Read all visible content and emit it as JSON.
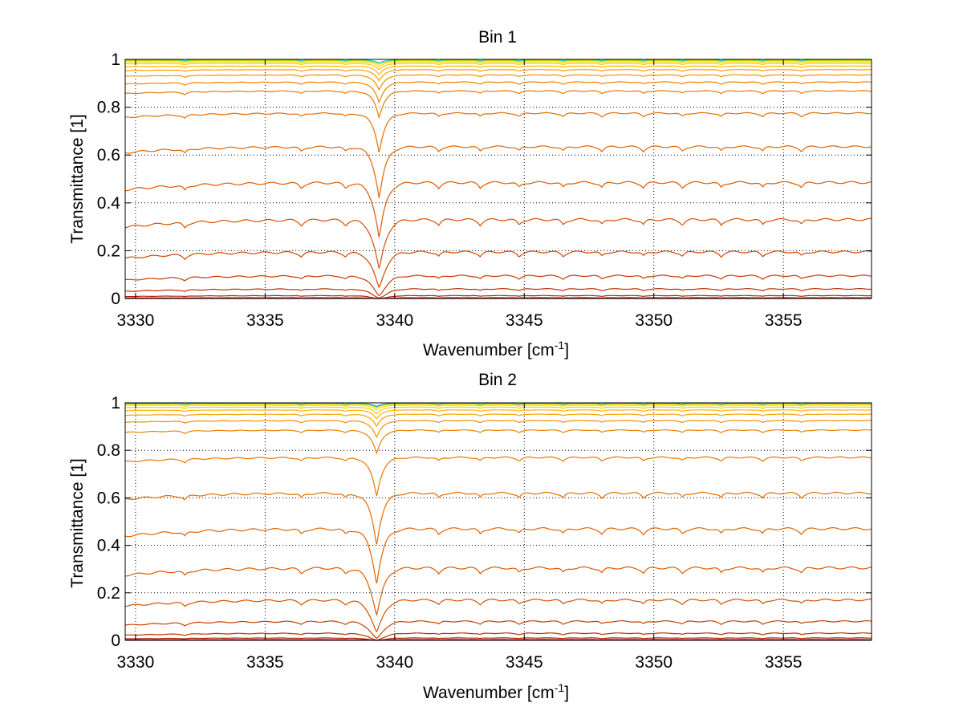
{
  "figure": {
    "background": "#ffffff"
  },
  "chart_data": [
    {
      "type": "line",
      "title": "Bin 1",
      "xlabel": "Wavenumber [cm",
      "xlabel_sup": "-1",
      "xlabel_close": "]",
      "ylabel": "Transmittance [1]",
      "xlim": [
        3329.6,
        3358.4
      ],
      "ylim": [
        0,
        1
      ],
      "xticks": [
        3330,
        3335,
        3340,
        3345,
        3350,
        3355
      ],
      "xtick_labels": [
        "3330",
        "3335",
        "3340",
        "3345",
        "3350",
        "3355"
      ],
      "yticks": [
        0,
        0.2,
        0.4,
        0.6,
        0.8,
        1
      ],
      "ytick_labels": [
        "0",
        "0.2",
        "0.4",
        "0.6",
        "0.8",
        "1"
      ],
      "grid": "dotted",
      "description_of_series": "family of transmittance spectra, darker red = more absorption",
      "main_absorption_line": 3339.4,
      "weak_absorption_lines": [
        3331.9,
        3336.4,
        3338.1,
        3341.7,
        3343.3,
        3344.8,
        3346.5,
        3348.0,
        3349.6,
        3351.1,
        3352.6,
        3354.2,
        3355.7
      ],
      "series": [
        {
          "name": "s1",
          "baseline": 0.998,
          "color": "#00c8d8"
        },
        {
          "name": "s2",
          "baseline": 0.995,
          "color": "#c8dc00"
        },
        {
          "name": "s3",
          "baseline": 0.99,
          "color": "#ffd800"
        },
        {
          "name": "s4",
          "baseline": 0.983,
          "color": "#ffc800"
        },
        {
          "name": "s5",
          "baseline": 0.972,
          "color": "#ffb400"
        },
        {
          "name": "s6",
          "baseline": 0.957,
          "color": "#f8a000"
        },
        {
          "name": "s7",
          "baseline": 0.935,
          "color": "#f09000"
        },
        {
          "name": "s8",
          "baseline": 0.905,
          "color": "#ec8400"
        },
        {
          "name": "s9",
          "baseline": 0.868,
          "color": "#e87800"
        },
        {
          "name": "s10",
          "baseline": 0.775,
          "color": "#e46e00"
        },
        {
          "name": "s11",
          "baseline": 0.635,
          "color": "#e06400"
        },
        {
          "name": "s12",
          "baseline": 0.485,
          "color": "#dc5a00"
        },
        {
          "name": "s13",
          "baseline": 0.33,
          "color": "#d85000"
        },
        {
          "name": "s14",
          "baseline": 0.195,
          "color": "#d04600"
        },
        {
          "name": "s15",
          "baseline": 0.095,
          "color": "#c83c00"
        },
        {
          "name": "s16",
          "baseline": 0.04,
          "color": "#c03000"
        },
        {
          "name": "s17",
          "baseline": 0.012,
          "color": "#b42000"
        },
        {
          "name": "s18",
          "baseline": 0.003,
          "color": "#a00000"
        }
      ]
    },
    {
      "type": "line",
      "title": "Bin 2",
      "xlabel": "Wavenumber [cm",
      "xlabel_sup": "-1",
      "xlabel_close": "]",
      "ylabel": "Transmittance [1]",
      "xlim": [
        3329.6,
        3358.4
      ],
      "ylim": [
        0,
        1
      ],
      "xticks": [
        3330,
        3335,
        3340,
        3345,
        3350,
        3355
      ],
      "xtick_labels": [
        "3330",
        "3335",
        "3340",
        "3345",
        "3350",
        "3355"
      ],
      "yticks": [
        0,
        0.2,
        0.4,
        0.6,
        0.8,
        1
      ],
      "ytick_labels": [
        "0",
        "0.2",
        "0.4",
        "0.6",
        "0.8",
        "1"
      ],
      "grid": "dotted",
      "description_of_series": "family of transmittance spectra, darker red = more absorption",
      "main_absorption_line": 3339.3,
      "weak_absorption_lines": [
        3331.9,
        3336.4,
        3338.1,
        3341.7,
        3343.3,
        3344.8,
        3346.5,
        3348.0,
        3349.6,
        3351.1,
        3352.6,
        3354.2,
        3355.7
      ],
      "series": [
        {
          "name": "s1",
          "baseline": 0.998,
          "color": "#0090e0"
        },
        {
          "name": "s2",
          "baseline": 0.995,
          "color": "#c8dc00"
        },
        {
          "name": "s3",
          "baseline": 0.99,
          "color": "#ffd800"
        },
        {
          "name": "s4",
          "baseline": 0.982,
          "color": "#ffc800"
        },
        {
          "name": "s5",
          "baseline": 0.97,
          "color": "#ffb400"
        },
        {
          "name": "s6",
          "baseline": 0.952,
          "color": "#f8a000"
        },
        {
          "name": "s7",
          "baseline": 0.925,
          "color": "#f09000"
        },
        {
          "name": "s8",
          "baseline": 0.885,
          "color": "#ec8400"
        },
        {
          "name": "s9",
          "baseline": 0.77,
          "color": "#e87800"
        },
        {
          "name": "s10",
          "baseline": 0.62,
          "color": "#e46e00"
        },
        {
          "name": "s11",
          "baseline": 0.47,
          "color": "#e06400"
        },
        {
          "name": "s12",
          "baseline": 0.305,
          "color": "#dc5a00"
        },
        {
          "name": "s13",
          "baseline": 0.17,
          "color": "#d45000"
        },
        {
          "name": "s14",
          "baseline": 0.08,
          "color": "#c84000"
        },
        {
          "name": "s15",
          "baseline": 0.03,
          "color": "#bc3000"
        },
        {
          "name": "s16",
          "baseline": 0.01,
          "color": "#b02000"
        },
        {
          "name": "s17",
          "baseline": 0.003,
          "color": "#a00000"
        }
      ]
    }
  ]
}
